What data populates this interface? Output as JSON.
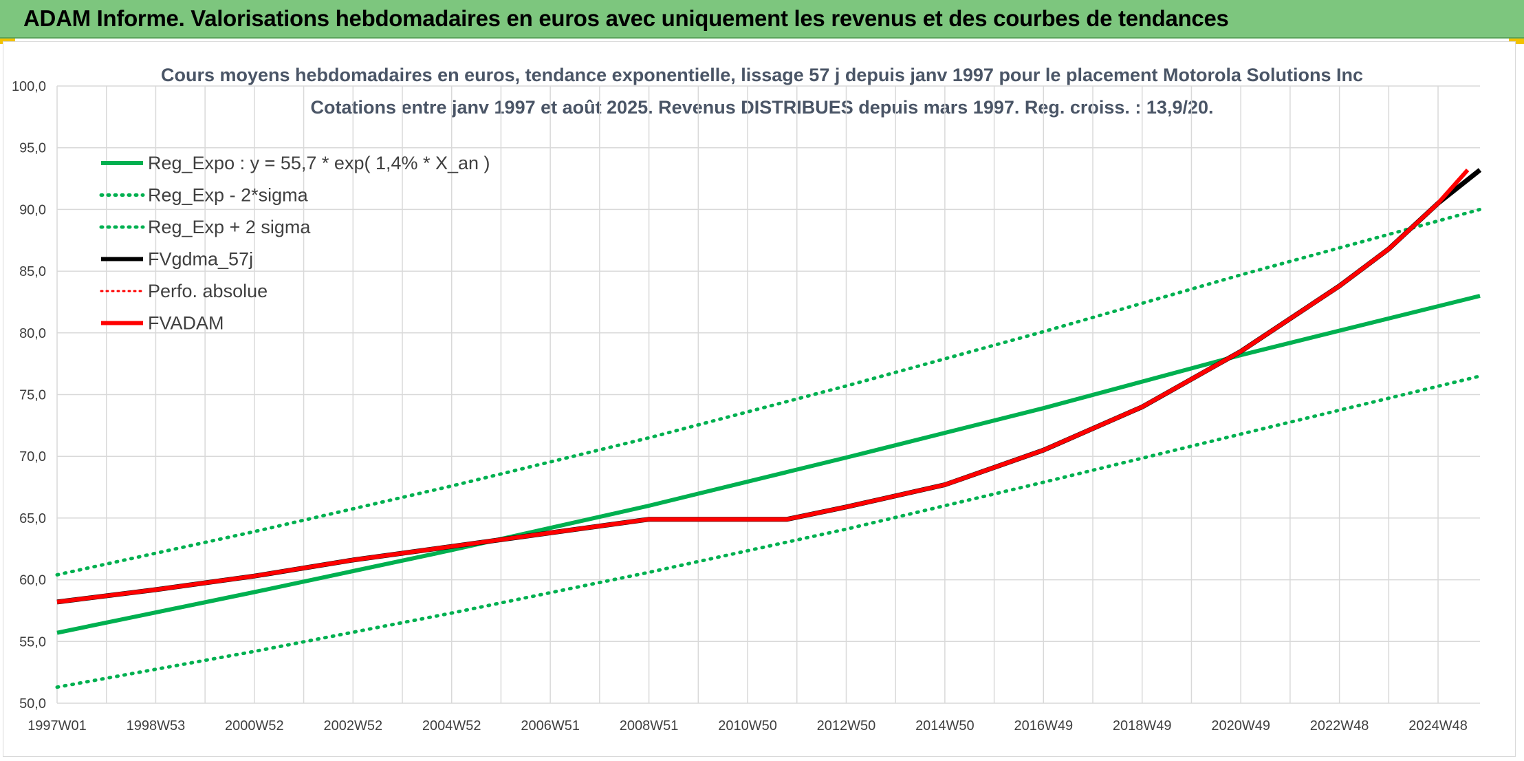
{
  "banner": {
    "title": "ADAM Informe. Valorisations hebdomadaires en euros avec uniquement les revenus et des courbes de tendances"
  },
  "colors": {
    "banner_bg": "#7dc67e",
    "trend_green": "#00b050",
    "fvadam_red": "#ff0000",
    "fvgdma_black": "#000000"
  },
  "chart_data": {
    "type": "line",
    "title": "Cours moyens hebdomadaires en euros, tendance exponentielle, lissage 57 j depuis janv 1997 pour le placement Motorola Solutions Inc",
    "subtitle": "Cotations entre janv 1997 et août 2025. Revenus DISTRIBUES depuis mars 1997. Reg. croiss. : 13,9/20.",
    "xlabel": "",
    "ylabel": "",
    "x_tick_labels": [
      "1997W01",
      "1998W53",
      "2000W52",
      "2002W52",
      "2004W52",
      "2006W51",
      "2008W51",
      "2010W50",
      "2012W50",
      "2014W50",
      "2016W49",
      "2018W49",
      "2020W49",
      "2022W48",
      "2024W48"
    ],
    "x_tick_years": [
      1997.0,
      1999.0,
      2001.0,
      2003.0,
      2005.0,
      2007.0,
      2009.0,
      2011.0,
      2013.0,
      2015.0,
      2017.0,
      2019.0,
      2021.0,
      2023.0,
      2025.0
    ],
    "xlim": [
      1997.0,
      2025.85
    ],
    "ylim": [
      50,
      100
    ],
    "y_ticks": [
      50,
      55,
      60,
      65,
      70,
      75,
      80,
      85,
      90,
      95,
      100
    ],
    "y_tick_labels": [
      "50,0",
      "55,0",
      "60,0",
      "65,0",
      "70,0",
      "75,0",
      "80,0",
      "85,0",
      "90,0",
      "95,0",
      "100,0"
    ],
    "grid": true,
    "legend_position": "top-left",
    "series": [
      {
        "name": "Reg_Expo : y = 55,7 * exp( 1,4% *  X_an )",
        "style": "solid",
        "color": "#00b050",
        "x": [
          1997.0,
          2001.0,
          2005.0,
          2009.0,
          2013.0,
          2017.0,
          2021.0,
          2025.85
        ],
        "y": [
          55.7,
          59.0,
          62.4,
          66.0,
          69.9,
          73.9,
          78.2,
          83.0
        ]
      },
      {
        "name": "Reg_Exp - 2*sigma",
        "style": "dotted",
        "color": "#00b050",
        "x": [
          1997.0,
          2001.0,
          2005.0,
          2009.0,
          2013.0,
          2017.0,
          2021.0,
          2025.85
        ],
        "y": [
          51.3,
          54.2,
          57.3,
          60.6,
          64.1,
          67.9,
          71.8,
          76.5
        ]
      },
      {
        "name": "Reg_Exp + 2 sigma",
        "style": "dotted",
        "color": "#00b050",
        "x": [
          1997.0,
          2001.0,
          2005.0,
          2009.0,
          2013.0,
          2017.0,
          2021.0,
          2025.85
        ],
        "y": [
          60.4,
          63.9,
          67.6,
          71.5,
          75.7,
          80.1,
          84.7,
          90.0
        ]
      },
      {
        "name": "FVgdma_57j",
        "style": "solid",
        "color": "#000000",
        "x": [
          1997.0,
          1999.0,
          2001.0,
          2003.0,
          2005.0,
          2007.0,
          2009.0,
          2011.0,
          2011.8,
          2013.0,
          2015.0,
          2017.0,
          2019.0,
          2021.0,
          2023.0,
          2024.0,
          2025.0,
          2025.85
        ],
        "y": [
          58.2,
          59.2,
          60.3,
          61.6,
          62.7,
          63.8,
          64.9,
          64.9,
          64.9,
          65.9,
          67.7,
          70.5,
          74.0,
          78.5,
          83.8,
          86.8,
          90.5,
          93.2
        ]
      },
      {
        "name": "Perfo. absolue",
        "style": "dotted",
        "color": "#ff0000",
        "x": [],
        "y": []
      },
      {
        "name": "FVADAM",
        "style": "solid",
        "color": "#ff0000",
        "x": [
          1997.0,
          1999.0,
          2001.0,
          2003.0,
          2005.0,
          2007.0,
          2009.0,
          2011.0,
          2011.8,
          2013.0,
          2015.0,
          2017.0,
          2019.0,
          2021.0,
          2023.0,
          2024.0,
          2025.0,
          2025.6
        ],
        "y": [
          58.2,
          59.2,
          60.3,
          61.6,
          62.7,
          63.8,
          64.9,
          64.9,
          64.9,
          65.9,
          67.7,
          70.5,
          74.0,
          78.5,
          83.8,
          86.8,
          90.5,
          93.2
        ]
      }
    ]
  }
}
